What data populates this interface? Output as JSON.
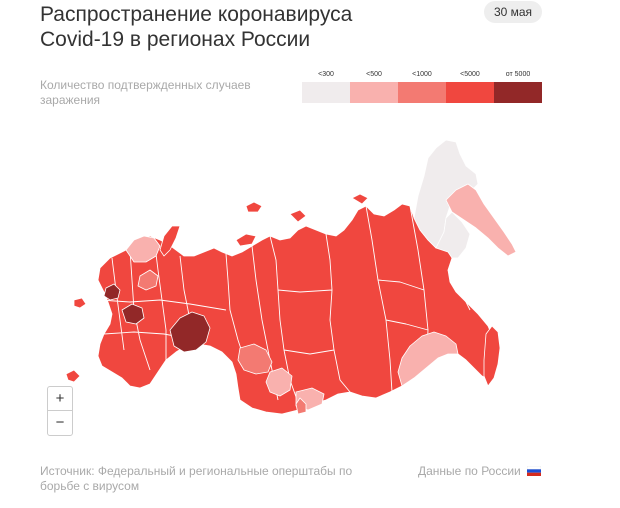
{
  "header": {
    "title_line1": "Распространение коронавируса",
    "title_line2": "Covid-19 в регионах России",
    "date": "30 мая"
  },
  "legend": {
    "caption": "Количество подтвержденных случаев заражения",
    "items": [
      {
        "label": "<300",
        "color": "#f0eced"
      },
      {
        "label": "<500",
        "color": "#f9b1ae"
      },
      {
        "label": "<1000",
        "color": "#f37a72"
      },
      {
        "label": "<5000",
        "color": "#f0473f"
      },
      {
        "label": "от 5000",
        "color": "#922828"
      }
    ]
  },
  "map": {
    "colors": {
      "lt300": "#f0eced",
      "lt500": "#f9b1ae",
      "lt1000": "#f37a72",
      "lt5000": "#f0473f",
      "gte5000": "#922828",
      "border": "#ffffff"
    }
  },
  "zoom": {
    "in_label": "+",
    "out_label": "−"
  },
  "footer": {
    "source": "Источник: Федеральный и региональные оперштабы по борьбе с вирусом",
    "country_link": "Данные по России",
    "flag_icon": "russia-flag-icon"
  }
}
